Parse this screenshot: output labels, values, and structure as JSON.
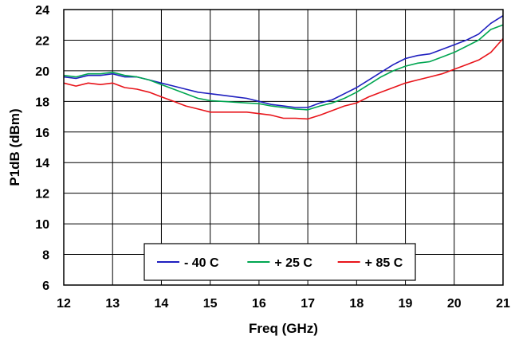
{
  "chart_data": {
    "type": "line",
    "title": "",
    "xlabel": "Freq (GHz)",
    "ylabel": "P1dB (dBm)",
    "xlim": [
      12,
      21
    ],
    "ylim": [
      6,
      24
    ],
    "xticks": [
      12,
      13,
      14,
      15,
      16,
      17,
      18,
      19,
      20,
      21
    ],
    "yticks": [
      6,
      8,
      10,
      12,
      14,
      16,
      18,
      20,
      22,
      24
    ],
    "grid": true,
    "legend_position": "bottom-center",
    "series": [
      {
        "name": "- 40 C",
        "color": "#1f1fbf",
        "x": [
          12.0,
          12.25,
          12.5,
          12.75,
          13.0,
          13.25,
          13.5,
          13.75,
          14.0,
          14.25,
          14.5,
          14.75,
          15.0,
          15.25,
          15.5,
          15.75,
          16.0,
          16.25,
          16.5,
          16.75,
          17.0,
          17.25,
          17.5,
          17.75,
          18.0,
          18.25,
          18.5,
          18.75,
          19.0,
          19.25,
          19.5,
          19.75,
          20.0,
          20.25,
          20.5,
          20.75,
          21.0
        ],
        "y": [
          19.6,
          19.5,
          19.7,
          19.7,
          19.8,
          19.6,
          19.6,
          19.4,
          19.2,
          19.0,
          18.8,
          18.6,
          18.5,
          18.4,
          18.3,
          18.2,
          18.0,
          17.8,
          17.7,
          17.6,
          17.6,
          17.9,
          18.1,
          18.5,
          18.9,
          19.4,
          19.9,
          20.4,
          20.8,
          21.0,
          21.1,
          21.4,
          21.7,
          22.0,
          22.4,
          23.1,
          23.6
        ]
      },
      {
        "name": "+ 25 C",
        "color": "#00a651",
        "x": [
          12.0,
          12.25,
          12.5,
          12.75,
          13.0,
          13.25,
          13.5,
          13.75,
          14.0,
          14.25,
          14.5,
          14.75,
          15.0,
          15.25,
          15.5,
          15.75,
          16.0,
          16.25,
          16.5,
          16.75,
          17.0,
          17.25,
          17.5,
          17.75,
          18.0,
          18.25,
          18.5,
          18.75,
          19.0,
          19.25,
          19.5,
          19.75,
          20.0,
          20.25,
          20.5,
          20.75,
          21.0
        ],
        "y": [
          19.7,
          19.6,
          19.8,
          19.8,
          19.9,
          19.7,
          19.6,
          19.4,
          19.1,
          18.8,
          18.5,
          18.2,
          18.05,
          18.0,
          17.95,
          17.9,
          17.85,
          17.7,
          17.6,
          17.5,
          17.45,
          17.7,
          17.9,
          18.2,
          18.6,
          19.1,
          19.6,
          20.0,
          20.3,
          20.5,
          20.6,
          20.9,
          21.2,
          21.6,
          22.0,
          22.7,
          23.0
        ]
      },
      {
        "name": "+ 85 C",
        "color": "#e8141a",
        "x": [
          12.0,
          12.25,
          12.5,
          12.75,
          13.0,
          13.25,
          13.5,
          13.75,
          14.0,
          14.25,
          14.5,
          14.75,
          15.0,
          15.25,
          15.5,
          15.75,
          16.0,
          16.25,
          16.5,
          16.75,
          17.0,
          17.25,
          17.5,
          17.75,
          18.0,
          18.25,
          18.5,
          18.75,
          19.0,
          19.25,
          19.5,
          19.75,
          20.0,
          20.25,
          20.5,
          20.75,
          21.0
        ],
        "y": [
          19.2,
          19.0,
          19.2,
          19.1,
          19.2,
          18.9,
          18.8,
          18.6,
          18.3,
          18.0,
          17.7,
          17.5,
          17.3,
          17.3,
          17.3,
          17.3,
          17.2,
          17.1,
          16.9,
          16.9,
          16.85,
          17.1,
          17.4,
          17.7,
          17.9,
          18.3,
          18.6,
          18.9,
          19.2,
          19.4,
          19.6,
          19.8,
          20.1,
          20.4,
          20.7,
          21.2,
          22.1
        ]
      }
    ]
  }
}
